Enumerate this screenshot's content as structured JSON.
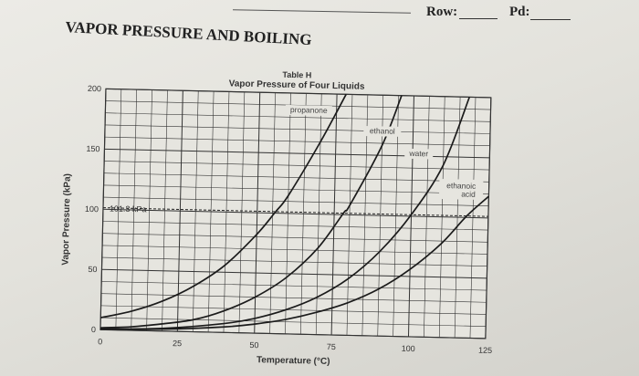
{
  "header": {
    "row_label": "Row:",
    "pd_label": "Pd:",
    "page_title": "VAPOR PRESSURE AND BOILING"
  },
  "chart_data": {
    "type": "line",
    "title": "Table H",
    "subtitle": "Vapor Pressure of Four Liquids",
    "xlabel": "Temperature (°C)",
    "ylabel": "Vapor Pressure (kPa)",
    "xlim": [
      0,
      125
    ],
    "ylim": [
      0,
      200
    ],
    "x_ticks": [
      "0",
      "25",
      "50",
      "75",
      "100",
      "125"
    ],
    "y_ticks": [
      "0",
      "50",
      "100",
      "150",
      "200"
    ],
    "grid": true,
    "reference_line": {
      "y": 101.3,
      "label": "101.3 kPa",
      "style": "dashed"
    },
    "series": [
      {
        "name": "propanone",
        "points": [
          [
            0,
            10
          ],
          [
            10,
            16
          ],
          [
            20,
            25
          ],
          [
            30,
            38
          ],
          [
            40,
            56
          ],
          [
            50,
            82
          ],
          [
            56,
            101.3
          ],
          [
            60,
            115
          ],
          [
            70,
            160
          ],
          [
            78,
            200
          ]
        ]
      },
      {
        "name": "ethanol",
        "points": [
          [
            0,
            1.6
          ],
          [
            10,
            3
          ],
          [
            20,
            6
          ],
          [
            30,
            10
          ],
          [
            40,
            18
          ],
          [
            50,
            30
          ],
          [
            60,
            47
          ],
          [
            70,
            72
          ],
          [
            78,
            101.3
          ],
          [
            80,
            108
          ],
          [
            90,
            158
          ],
          [
            96,
            200
          ]
        ]
      },
      {
        "name": "water",
        "points": [
          [
            0,
            0.6
          ],
          [
            20,
            2.3
          ],
          [
            40,
            7.4
          ],
          [
            50,
            12.3
          ],
          [
            60,
            20
          ],
          [
            70,
            31
          ],
          [
            80,
            47
          ],
          [
            90,
            70
          ],
          [
            100,
            101.3
          ],
          [
            110,
            143
          ],
          [
            118,
            200
          ]
        ]
      },
      {
        "name": "ethanoic acid",
        "points": [
          [
            0,
            0.5
          ],
          [
            20,
            1.6
          ],
          [
            40,
            4.6
          ],
          [
            50,
            7.6
          ],
          [
            60,
            12
          ],
          [
            70,
            18.5
          ],
          [
            80,
            27
          ],
          [
            90,
            39
          ],
          [
            100,
            56
          ],
          [
            110,
            78
          ],
          [
            118,
            101.3
          ],
          [
            125,
            118
          ]
        ]
      }
    ]
  }
}
